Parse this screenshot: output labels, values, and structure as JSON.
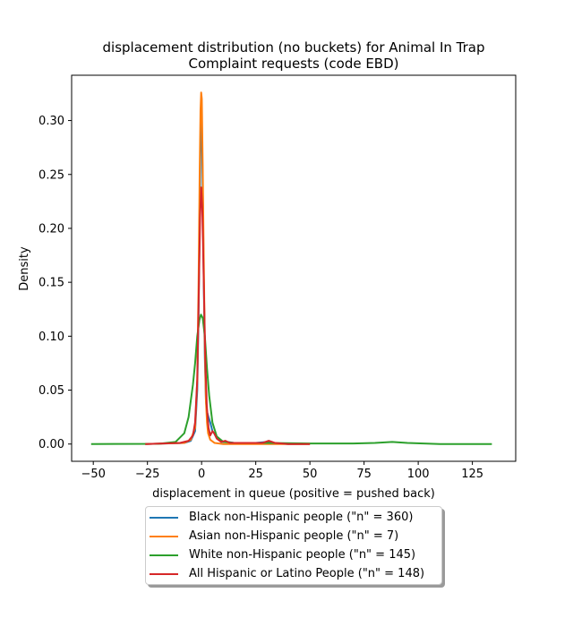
{
  "chart_data": {
    "type": "line",
    "title": "displacement distribution (no buckets)  for Animal In Trap\nComplaint requests (code EBD)",
    "xlabel": "displacement in queue (positive = pushed back)",
    "ylabel": "Density",
    "xlim": [
      -60,
      145
    ],
    "ylim": [
      -0.016,
      0.342
    ],
    "xticks": [
      -50,
      -25,
      0,
      25,
      50,
      75,
      100,
      125
    ],
    "yticks": [
      0.0,
      0.05,
      0.1,
      0.15,
      0.2,
      0.25,
      0.3
    ],
    "ytick_labels": [
      "0.00",
      "0.05",
      "0.10",
      "0.15",
      "0.20",
      "0.25",
      "0.30"
    ],
    "grid": false,
    "legend_placement": "below",
    "series": [
      {
        "name": "Black non-Hispanic people (\"n\" = 360)",
        "color": "#1f77b4",
        "points": [
          [
            -26,
            0
          ],
          [
            -8,
            0.001
          ],
          [
            -5,
            0.003
          ],
          [
            -3,
            0.012
          ],
          [
            -2,
            0.05
          ],
          [
            -1.4,
            0.12
          ],
          [
            -0.9,
            0.2
          ],
          [
            -0.5,
            0.28
          ],
          [
            -0.2,
            0.315
          ],
          [
            0.1,
            0.3
          ],
          [
            0.5,
            0.24
          ],
          [
            1,
            0.15
          ],
          [
            1.5,
            0.08
          ],
          [
            2,
            0.04
          ],
          [
            2.5,
            0.03
          ],
          [
            3.2,
            0.025
          ],
          [
            4,
            0.02
          ],
          [
            5,
            0.012
          ],
          [
            5.8,
            0.01
          ],
          [
            7,
            0.006
          ],
          [
            9,
            0.002
          ],
          [
            12,
            0.002
          ],
          [
            15,
            0.001
          ],
          [
            25,
            0.001
          ],
          [
            30,
            0.002
          ],
          [
            32,
            0.001
          ],
          [
            40,
            0
          ],
          [
            50,
            0
          ]
        ]
      },
      {
        "name": "Asian non-Hispanic people (\"n\" = 7)",
        "color": "#ff7f0e",
        "points": [
          [
            -26,
            0
          ],
          [
            -8,
            0.001
          ],
          [
            -5,
            0.004
          ],
          [
            -3,
            0.015
          ],
          [
            -2,
            0.06
          ],
          [
            -1.4,
            0.15
          ],
          [
            -0.9,
            0.25
          ],
          [
            -0.5,
            0.31
          ],
          [
            -0.2,
            0.326
          ],
          [
            0.1,
            0.32
          ],
          [
            0.5,
            0.26
          ],
          [
            1,
            0.17
          ],
          [
            1.5,
            0.09
          ],
          [
            2,
            0.04
          ],
          [
            2.5,
            0.02
          ],
          [
            3,
            0.01
          ],
          [
            4,
            0.004
          ],
          [
            6,
            0.001
          ],
          [
            10,
            0
          ],
          [
            50,
            0
          ]
        ]
      },
      {
        "name": "White non-Hispanic people (\"n\" = 145)",
        "color": "#2ca02c",
        "points": [
          [
            -51,
            0
          ],
          [
            -20,
            0.0002
          ],
          [
            -12,
            0.002
          ],
          [
            -8,
            0.01
          ],
          [
            -6,
            0.025
          ],
          [
            -4,
            0.055
          ],
          [
            -3,
            0.075
          ],
          [
            -2,
            0.1
          ],
          [
            -1,
            0.115
          ],
          [
            -0.3,
            0.12
          ],
          [
            0.5,
            0.117
          ],
          [
            1.5,
            0.1
          ],
          [
            2.5,
            0.07
          ],
          [
            3.5,
            0.045
          ],
          [
            5,
            0.02
          ],
          [
            7,
            0.007
          ],
          [
            10,
            0.002
          ],
          [
            15,
            0.001
          ],
          [
            30,
            0.001
          ],
          [
            50,
            0.0005
          ],
          [
            70,
            0.0005
          ],
          [
            80,
            0.001
          ],
          [
            88,
            0.002
          ],
          [
            95,
            0.001
          ],
          [
            110,
            0
          ],
          [
            134,
            0
          ]
        ]
      },
      {
        "name": "All Hispanic or Latino People (\"n\" = 148)",
        "color": "#d62728",
        "points": [
          [
            -26,
            0
          ],
          [
            -10,
            0.001
          ],
          [
            -6,
            0.003
          ],
          [
            -4,
            0.008
          ],
          [
            -3,
            0.02
          ],
          [
            -2,
            0.06
          ],
          [
            -1.3,
            0.14
          ],
          [
            -0.7,
            0.21
          ],
          [
            -0.2,
            0.238
          ],
          [
            0.3,
            0.22
          ],
          [
            1,
            0.15
          ],
          [
            1.7,
            0.08
          ],
          [
            2.4,
            0.035
          ],
          [
            3.2,
            0.015
          ],
          [
            4,
            0.008
          ],
          [
            5,
            0.012
          ],
          [
            5.8,
            0.01
          ],
          [
            7,
            0.005
          ],
          [
            9,
            0.002
          ],
          [
            11,
            0.003
          ],
          [
            13,
            0.001
          ],
          [
            20,
            0.001
          ],
          [
            28,
            0.001
          ],
          [
            31,
            0.003
          ],
          [
            34,
            0.001
          ],
          [
            40,
            0
          ],
          [
            50,
            0
          ]
        ]
      }
    ]
  }
}
